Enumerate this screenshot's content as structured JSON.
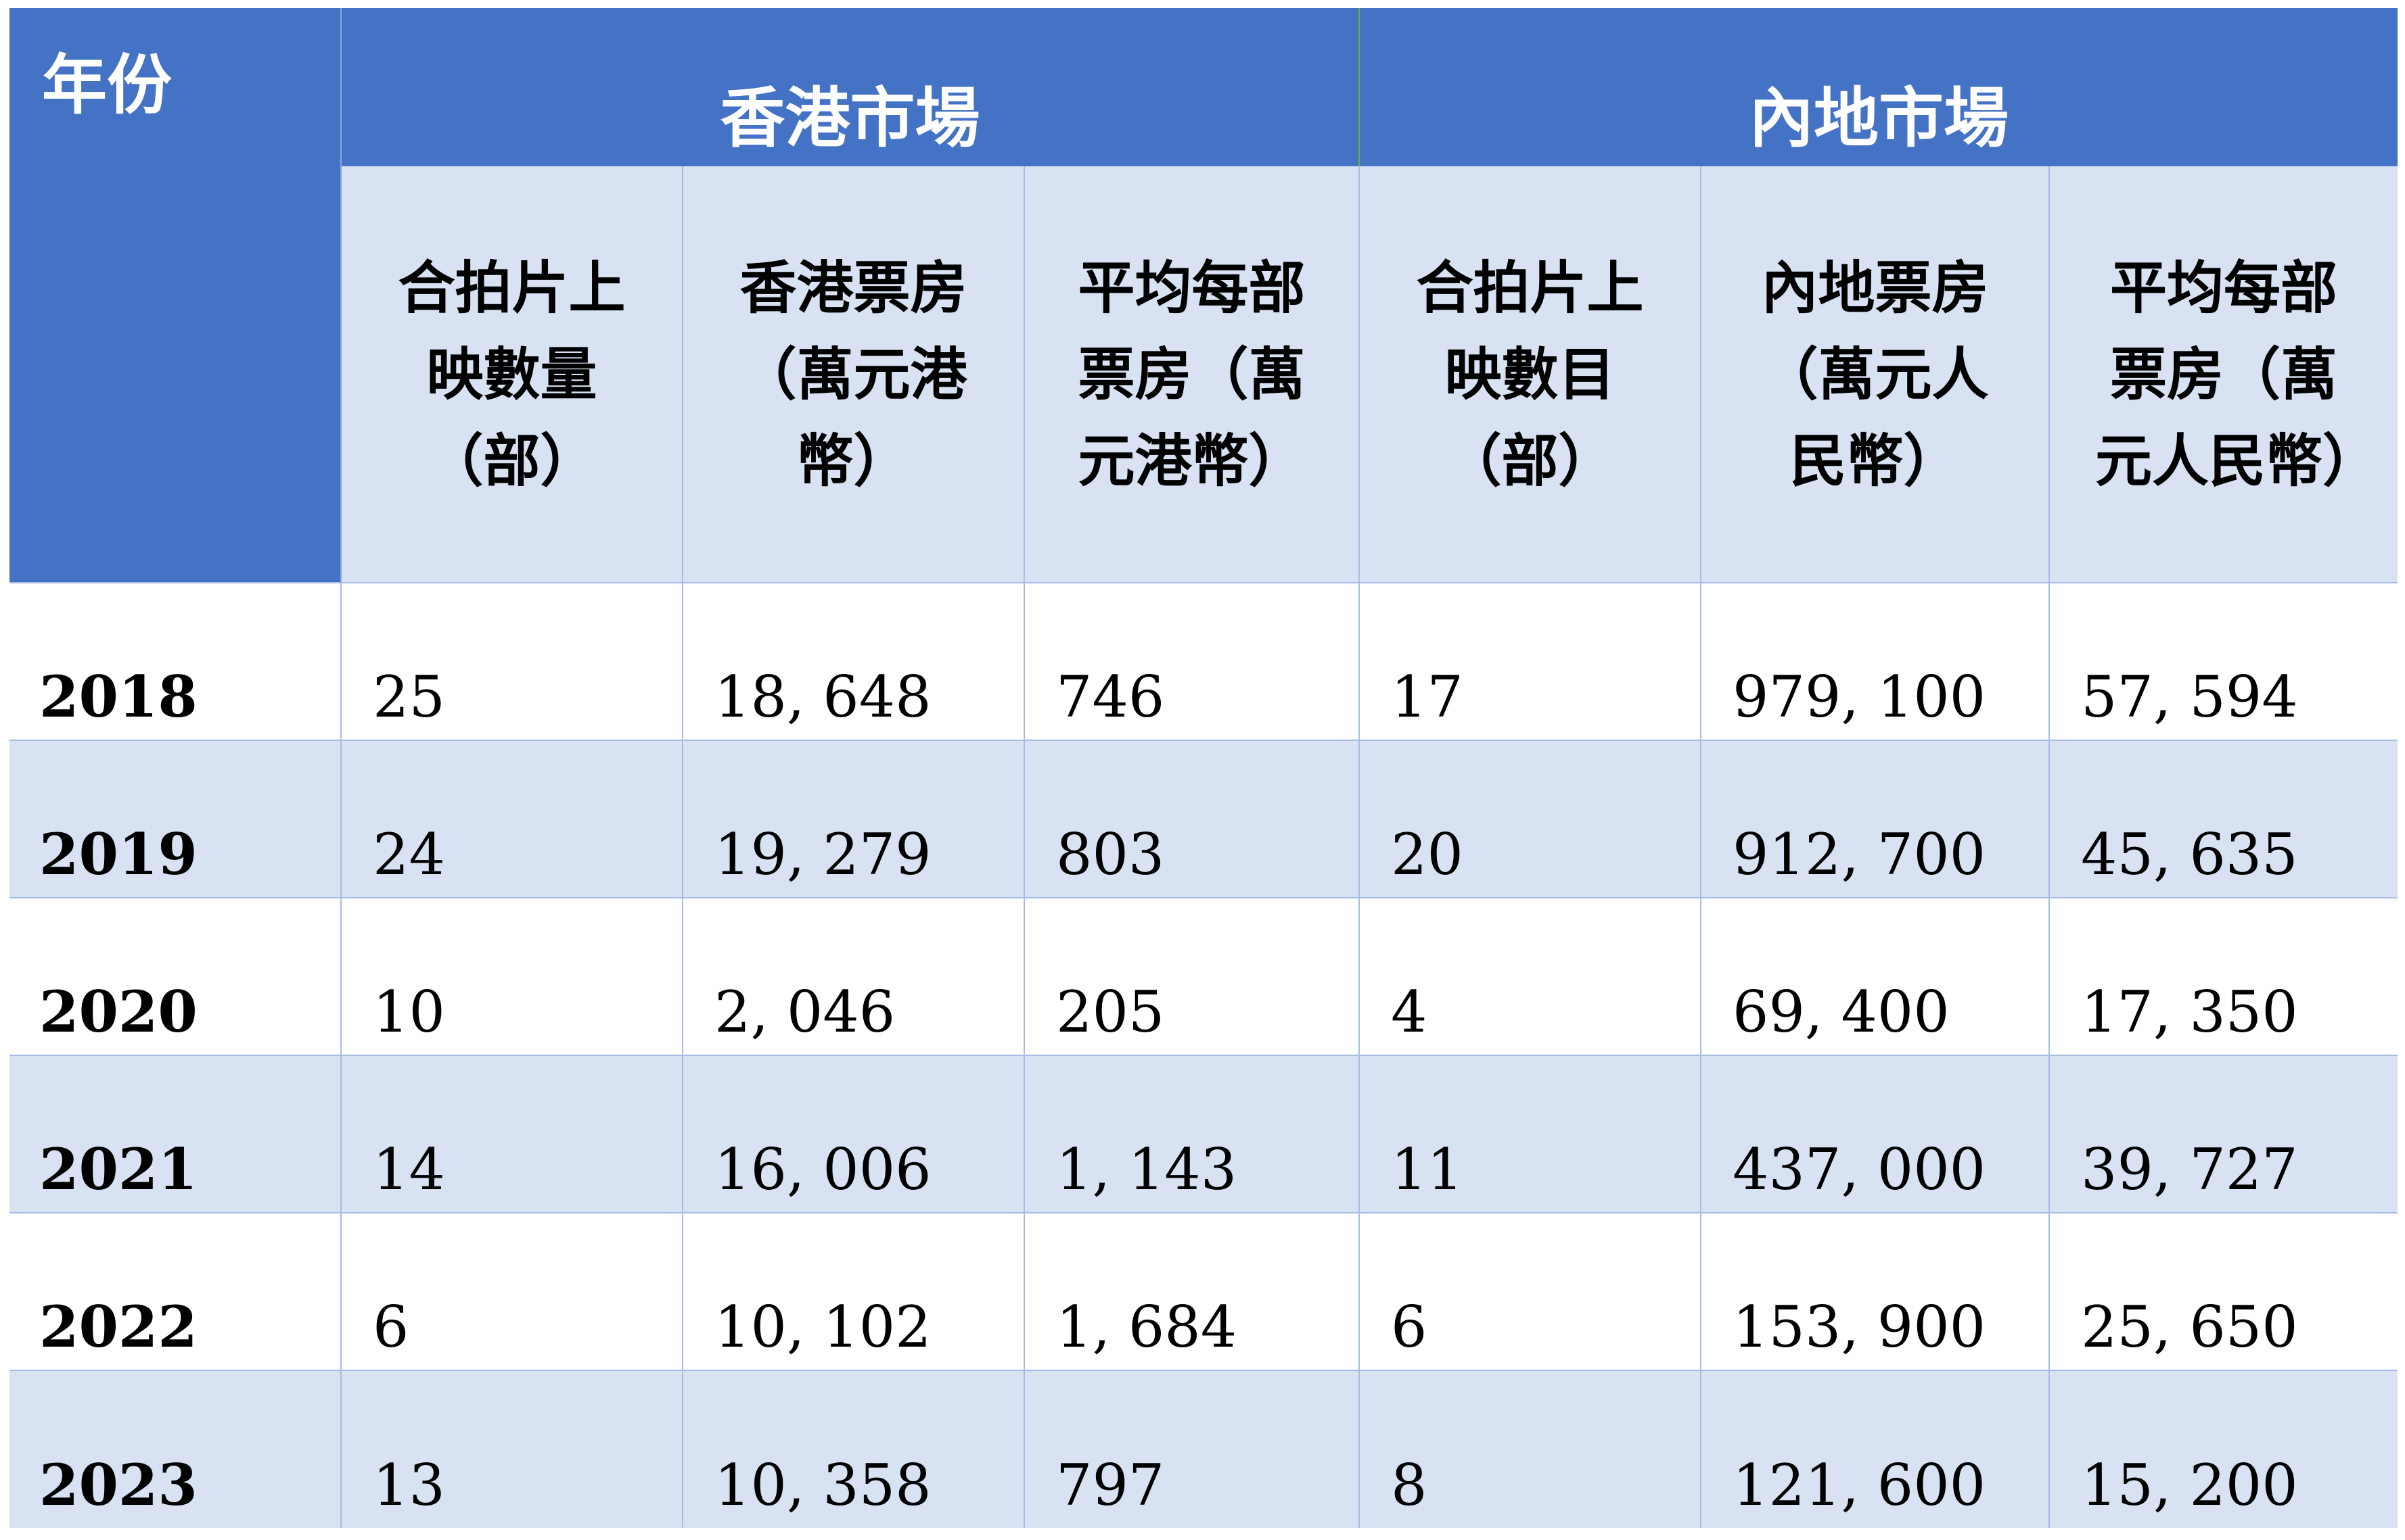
{
  "header": {
    "year": "年份",
    "hk_group": "香港市場",
    "cn_group": "內地市場",
    "columns": [
      "合拍片上映數量（部）",
      "香港票房（萬元港幣）",
      "平均每部票房（萬元港幣）",
      "合拍片上映數目（部）",
      "內地票房（萬元人民幣）",
      "平均每部票房（萬元人民幣）"
    ]
  },
  "rows": [
    {
      "year": "2018",
      "hk_count": "25",
      "hk_box": "18, 648",
      "hk_avg": "746",
      "cn_count": "17",
      "cn_box": "979, 100",
      "cn_avg": "57, 594"
    },
    {
      "year": "2019",
      "hk_count": "24",
      "hk_box": "19, 279",
      "hk_avg": "803",
      "cn_count": "20",
      "cn_box": "912, 700",
      "cn_avg": "45, 635"
    },
    {
      "year": "2020",
      "hk_count": "10",
      "hk_box": "2, 046",
      "hk_avg": "205",
      "cn_count": "4",
      "cn_box": "69, 400",
      "cn_avg": "17, 350"
    },
    {
      "year": "2021",
      "hk_count": "14",
      "hk_box": "16, 006",
      "hk_avg": "1, 143",
      "cn_count": "11",
      "cn_box": "437, 000",
      "cn_avg": "39, 727"
    },
    {
      "year": "2022",
      "hk_count": "6",
      "hk_box": "10, 102",
      "hk_avg": "1, 684",
      "cn_count": "6",
      "cn_box": "153, 900",
      "cn_avg": "25, 650"
    },
    {
      "year": "2023",
      "hk_count": "13",
      "hk_box": "10, 358",
      "hk_avg": "797",
      "cn_count": "8",
      "cn_box": "121, 600",
      "cn_avg": "15, 200"
    }
  ]
}
